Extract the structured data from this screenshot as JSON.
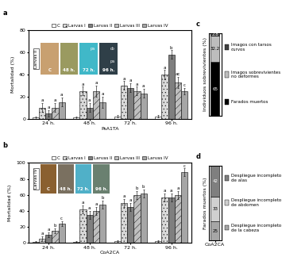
{
  "chart_data": [
    {
      "type": "bar",
      "panel": "a",
      "x_label": "PsA1TA",
      "y_label": "Mortalidad (%)",
      "categories": [
        "24 h.",
        "48 h.",
        "72 h.",
        "96 h."
      ],
      "ylim": [
        0,
        80
      ],
      "yticks": [
        0,
        20,
        40,
        60,
        80
      ],
      "legend": "top",
      "series": [
        {
          "name": "C",
          "color": "#ffffff",
          "values": [
            1,
            1,
            2,
            2
          ],
          "errors": [
            1,
            1,
            1,
            1
          ],
          "letters": [
            null,
            null,
            null,
            null
          ]
        },
        {
          "name": "Larvas I",
          "color": "#d9d9d9",
          "values": [
            10,
            25,
            30,
            40
          ],
          "errors": [
            4,
            4,
            4,
            4
          ],
          "letters": [
            "a",
            "a",
            "a",
            "a"
          ]
        },
        {
          "name": "Larvas II",
          "color": "#7f7f7f",
          "values": [
            5,
            10,
            28,
            58
          ],
          "errors": [
            3,
            4,
            4,
            4
          ],
          "letters": [
            "a",
            "a",
            "a",
            "b"
          ]
        },
        {
          "name": "Larvas III",
          "color": "#bfbfbf",
          "values": [
            10,
            25,
            25,
            33
          ],
          "errors": [
            4,
            5,
            4,
            5
          ],
          "letters": [
            "a",
            "a",
            "a",
            "ac"
          ]
        },
        {
          "name": "Larvas IV",
          "color": "#a6a6a6",
          "values": [
            15,
            15,
            23,
            25
          ],
          "errors": [
            4,
            5,
            4,
            3
          ],
          "letters": [
            "a",
            "a",
            "a",
            "c"
          ]
        }
      ],
      "photos": {
        "side_label": "Larvas II",
        "items": [
          {
            "label": "C",
            "notes": []
          },
          {
            "label": "48 h.",
            "notes": []
          },
          {
            "label": "72 h.",
            "notes": [
              "pa"
            ]
          },
          {
            "label": "96 h.",
            "notes": [
              "cb",
              "pa"
            ]
          }
        ]
      }
    },
    {
      "type": "bar",
      "panel": "b",
      "x_label": "CoA2CA",
      "y_label": "Mortalidad (%)",
      "categories": [
        "24 h.",
        "48 h.",
        "72 h.",
        "96 h."
      ],
      "ylim": [
        0,
        100
      ],
      "yticks": [
        0,
        20,
        40,
        60,
        80,
        100
      ],
      "legend": "top",
      "series": [
        {
          "name": "C",
          "color": "#ffffff",
          "values": [
            1,
            1,
            2,
            2
          ],
          "errors": [
            1,
            1,
            1,
            1
          ],
          "letters": [
            null,
            null,
            null,
            null
          ]
        },
        {
          "name": "Larvas I",
          "color": "#d9d9d9",
          "values": [
            5,
            42,
            50,
            57
          ],
          "errors": [
            3,
            5,
            5,
            5
          ],
          "letters": [
            "a",
            "a",
            "a",
            "a"
          ]
        },
        {
          "name": "Larvas II",
          "color": "#7f7f7f",
          "values": [
            10,
            35,
            45,
            57
          ],
          "errors": [
            3,
            5,
            5,
            5
          ],
          "letters": [
            "a",
            "a",
            "a",
            "a"
          ]
        },
        {
          "name": "Larvas III",
          "color": "#bfbfbf",
          "values": [
            15,
            40,
            60,
            60
          ],
          "errors": [
            3,
            5,
            5,
            5
          ],
          "letters": [
            "b",
            "a",
            "b",
            "a"
          ]
        },
        {
          "name": "Larvas IV",
          "color": "#a6a6a6",
          "values": [
            24,
            48,
            62,
            88
          ],
          "errors": [
            3,
            5,
            5,
            5
          ],
          "letters": [
            "c",
            "b",
            "b",
            "c"
          ]
        }
      ],
      "photos": {
        "side_label": "Larvas IV",
        "items": [
          {
            "label": "C",
            "notes": []
          },
          {
            "label": "48 h.",
            "notes": []
          },
          {
            "label": "72 h.",
            "notes": []
          },
          {
            "label": "96 h.",
            "notes": []
          }
        ]
      }
    },
    {
      "type": "bar",
      "panel": "c",
      "stacked": true,
      "data_labels": true,
      "tick_labels": false,
      "y_label": "Individuos sobrevivientes (%)",
      "categories": [
        null
      ],
      "ylim": [
        0,
        100
      ],
      "series": [
        {
          "name": "Farados muertos",
          "color": "#000000",
          "values": [
            65
          ]
        },
        {
          "name": "Imagos sobrevivientes no deformes",
          "color": "#bdbdbd",
          "values": [
            32.2
          ]
        },
        {
          "name": "Imagos con tarsos curvos",
          "color": "#404040",
          "values": [
            2.8
          ]
        }
      ]
    },
    {
      "type": "bar",
      "panel": "d",
      "stacked": true,
      "data_labels": true,
      "tick_labels": "x",
      "y_label": "Farados muertos (%)",
      "categories": [
        "CoA2CA"
      ],
      "ylim": [
        0,
        100
      ],
      "series": [
        {
          "name": "Despliegue incompleto de la cabeza",
          "color": "#a6a6a6",
          "values": [
            25
          ]
        },
        {
          "name": "Despliegue incompleto de abdomen",
          "color": "#d0d0d0",
          "values": [
            33
          ]
        },
        {
          "name": "Despliegue incompleto de alas",
          "color": "#7f7f7f",
          "values": [
            42
          ]
        }
      ]
    }
  ]
}
